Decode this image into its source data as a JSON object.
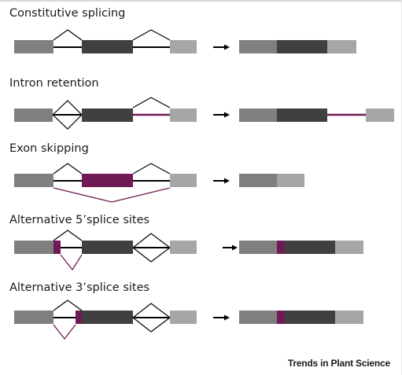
{
  "panels": [
    {
      "title": "Constitutive splicing"
    },
    {
      "title": "Intron retention"
    },
    {
      "title": "Exon skipping"
    },
    {
      "title": "Alternative 5’splice sites"
    },
    {
      "title": "Alternative 3’splice sites"
    }
  ],
  "footer": "Trends in Plant Science",
  "colors": {
    "exon_light": "#a6a6a6",
    "exon_mid": "#7f7f7f",
    "exon_dark": "#404040",
    "highlight": "#701a55",
    "line": "#000000"
  }
}
